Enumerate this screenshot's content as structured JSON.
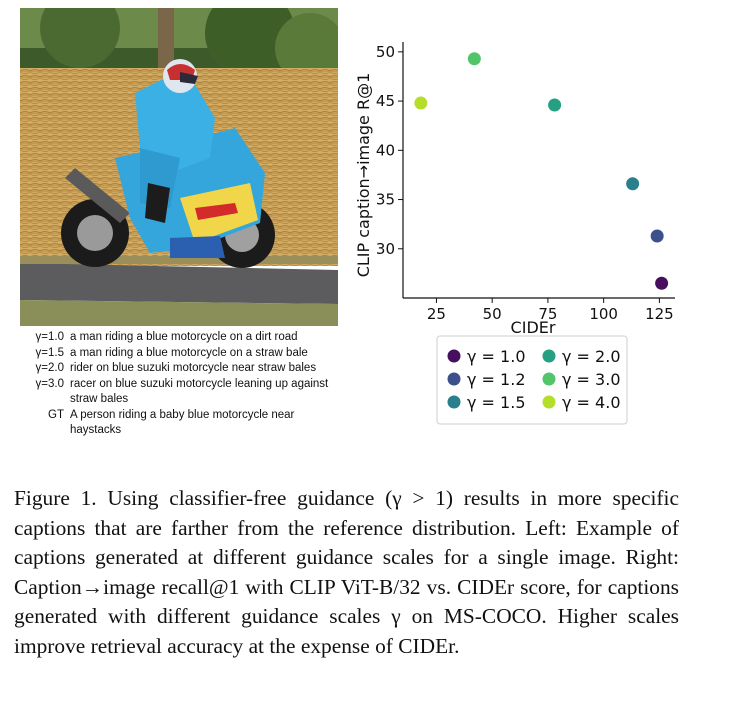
{
  "photo": {
    "description_icon": "motorcycle-photo"
  },
  "captions": [
    {
      "key": "γ=1.0",
      "text": "a man riding a blue motorcycle on a dirt road"
    },
    {
      "key": "γ=1.5",
      "text": "a man riding a blue motorcycle on a straw bale"
    },
    {
      "key": "γ=2.0",
      "text": "rider on blue suzuki motorcycle near straw bales"
    },
    {
      "key": "γ=3.0",
      "text": "racer on blue suzuki motorcycle leaning up against straw bales"
    },
    {
      "key": "GT",
      "text": "A person riding a baby blue motorcycle near haystacks"
    }
  ],
  "chart_data": {
    "type": "scatter",
    "xlabel": "CIDEr",
    "ylabel": "CLIP caption→image R@1",
    "xlim": [
      10,
      132
    ],
    "ylim": [
      25,
      51
    ],
    "xticks": [
      25,
      50,
      75,
      100,
      125
    ],
    "yticks": [
      30,
      35,
      40,
      45,
      50
    ],
    "grid": false,
    "legend_position": "bottom",
    "series": [
      {
        "name": "γ = 1.0",
        "color": "#46105e",
        "x": [
          126
        ],
        "y": [
          26.5
        ]
      },
      {
        "name": "γ = 1.2",
        "color": "#3c508c",
        "x": [
          124
        ],
        "y": [
          31.3
        ]
      },
      {
        "name": "γ = 1.5",
        "color": "#2a7f8c",
        "x": [
          113
        ],
        "y": [
          36.6
        ]
      },
      {
        "name": "γ = 2.0",
        "color": "#26a082",
        "x": [
          78
        ],
        "y": [
          44.6
        ]
      },
      {
        "name": "γ = 3.0",
        "color": "#52c46a",
        "x": [
          42
        ],
        "y": [
          49.3
        ]
      },
      {
        "name": "γ = 4.0",
        "color": "#b5de2b",
        "x": [
          18
        ],
        "y": [
          44.8
        ]
      }
    ]
  },
  "figure_caption": "Figure 1. Using classifier-free guidance (γ > 1) results in more specific captions that are farther from the reference distribution. Left: Example of captions generated at different guidance scales for a single image. Right: Caption→image recall@1 with CLIP ViT-B/32 vs. CIDEr score, for captions generated with different guidance scales γ on MS-COCO. Higher scales improve retrieval accuracy at the expense of CIDEr."
}
